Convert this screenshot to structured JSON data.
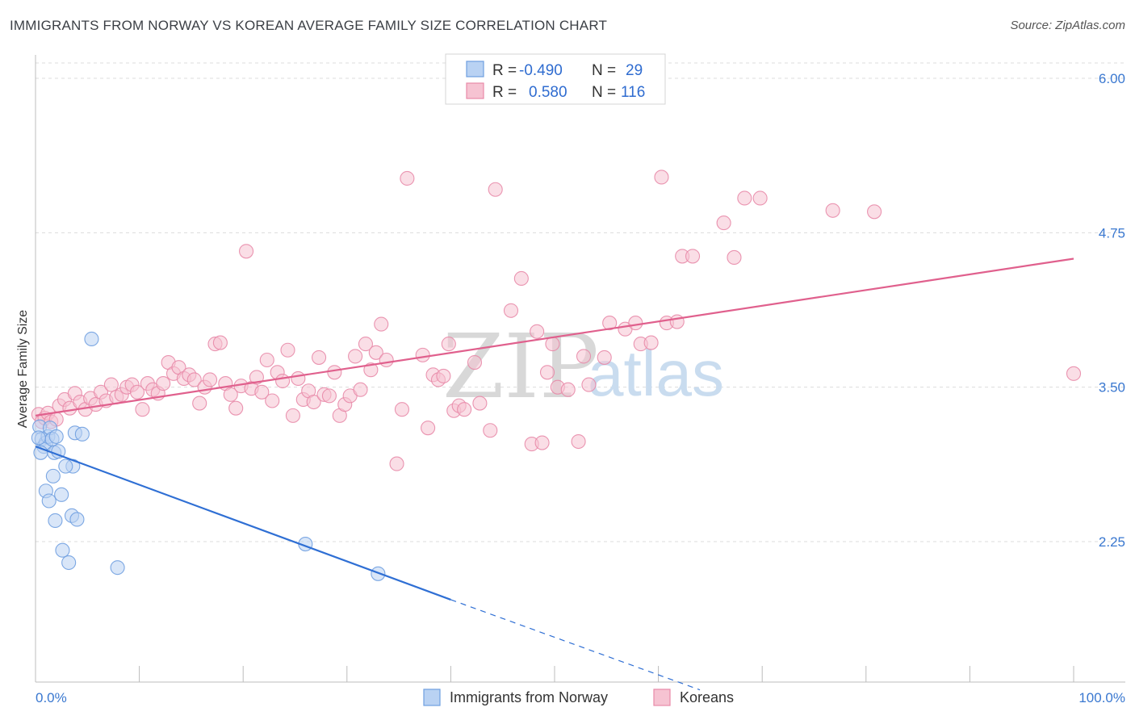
{
  "title": "IMMIGRANTS FROM NORWAY VS KOREAN AVERAGE FAMILY SIZE CORRELATION CHART",
  "source": "Source: ZipAtlas.com",
  "watermark": {
    "zip": "ZIP",
    "atlas": "atlas"
  },
  "legend_top": {
    "rows": [
      {
        "r_label": "R =",
        "r_value": "-0.490",
        "n_label": "N =",
        "n_value": "29"
      },
      {
        "r_label": "R =",
        "r_value": "0.580",
        "n_label": "N =",
        "n_value": "116"
      }
    ]
  },
  "legend_bottom": [
    "Immigrants from Norway",
    "Koreans"
  ],
  "colors": {
    "blue_fill": "#b9d2f3",
    "blue_stroke": "#6f9fe0",
    "blue_line": "#2f6fd4",
    "pink_fill": "#f6c3d2",
    "pink_stroke": "#e88aa8",
    "pink_line": "#e0608d",
    "grid": "#dcdcdc",
    "tick_text": "#3a78d0"
  },
  "chart_data": {
    "type": "scatter",
    "title": "IMMIGRANTS FROM NORWAY VS KOREAN AVERAGE FAMILY SIZE CORRELATION CHART",
    "xlabel": "",
    "ylabel": "Average Family Size",
    "xlim": [
      0,
      100
    ],
    "ylim": [
      1.25,
      6.25
    ],
    "x_tick_labels": [
      "0.0%",
      "100.0%"
    ],
    "y_ticks": [
      2.25,
      3.5,
      4.75,
      6.0
    ],
    "y_tick_labels": [
      "2.25",
      "3.50",
      "4.75",
      "6.00"
    ],
    "grid": true,
    "series": [
      {
        "name": "Immigrants from Norway",
        "color": "#6f9fe0",
        "r": -0.49,
        "n": 29,
        "trend": {
          "x": [
            0,
            40
          ],
          "y": [
            3.02,
            1.78
          ],
          "dashed_to": [
            64,
            1.05
          ]
        },
        "points": [
          [
            0.4,
            3.18
          ],
          [
            0.6,
            3.08
          ],
          [
            0.8,
            3.02
          ],
          [
            1.0,
            3.05
          ],
          [
            1.2,
            3.1
          ],
          [
            1.4,
            3.17
          ],
          [
            1.6,
            3.08
          ],
          [
            1.8,
            2.97
          ],
          [
            2.0,
            3.1
          ],
          [
            0.5,
            2.97
          ],
          [
            0.3,
            3.09
          ],
          [
            1.0,
            2.66
          ],
          [
            1.3,
            2.58
          ],
          [
            1.7,
            2.78
          ],
          [
            2.2,
            2.98
          ],
          [
            2.5,
            2.63
          ],
          [
            1.9,
            2.42
          ],
          [
            2.6,
            2.18
          ],
          [
            3.2,
            2.08
          ],
          [
            3.5,
            2.46
          ],
          [
            4.0,
            2.43
          ],
          [
            3.6,
            2.86
          ],
          [
            2.9,
            2.86
          ],
          [
            3.8,
            3.13
          ],
          [
            4.5,
            3.12
          ],
          [
            5.4,
            3.89
          ],
          [
            7.9,
            2.04
          ],
          [
            26.0,
            2.23
          ],
          [
            33.0,
            1.99
          ]
        ]
      },
      {
        "name": "Koreans",
        "color": "#e88aa8",
        "r": 0.58,
        "n": 116,
        "trend": {
          "x": [
            0,
            100
          ],
          "y": [
            3.27,
            4.54
          ]
        },
        "points": [
          [
            0.3,
            3.28
          ],
          [
            0.6,
            3.22
          ],
          [
            0.9,
            3.25
          ],
          [
            1.2,
            3.29
          ],
          [
            1.5,
            3.22
          ],
          [
            2.0,
            3.24
          ],
          [
            2.3,
            3.35
          ],
          [
            2.8,
            3.4
          ],
          [
            3.3,
            3.33
          ],
          [
            3.8,
            3.45
          ],
          [
            4.3,
            3.38
          ],
          [
            4.8,
            3.32
          ],
          [
            5.3,
            3.41
          ],
          [
            5.8,
            3.36
          ],
          [
            6.3,
            3.46
          ],
          [
            6.8,
            3.39
          ],
          [
            7.3,
            3.52
          ],
          [
            7.8,
            3.42
          ],
          [
            8.3,
            3.44
          ],
          [
            8.8,
            3.5
          ],
          [
            9.3,
            3.52
          ],
          [
            9.8,
            3.46
          ],
          [
            10.3,
            3.32
          ],
          [
            10.8,
            3.53
          ],
          [
            11.3,
            3.48
          ],
          [
            11.8,
            3.45
          ],
          [
            12.3,
            3.53
          ],
          [
            12.8,
            3.7
          ],
          [
            13.3,
            3.61
          ],
          [
            13.8,
            3.66
          ],
          [
            14.3,
            3.57
          ],
          [
            14.8,
            3.6
          ],
          [
            15.3,
            3.56
          ],
          [
            15.8,
            3.37
          ],
          [
            16.3,
            3.5
          ],
          [
            16.8,
            3.56
          ],
          [
            17.3,
            3.85
          ],
          [
            17.8,
            3.86
          ],
          [
            18.3,
            3.53
          ],
          [
            18.8,
            3.44
          ],
          [
            19.3,
            3.33
          ],
          [
            19.8,
            3.51
          ],
          [
            20.3,
            4.6
          ],
          [
            20.8,
            3.49
          ],
          [
            21.3,
            3.58
          ],
          [
            21.8,
            3.46
          ],
          [
            22.3,
            3.72
          ],
          [
            22.8,
            3.39
          ],
          [
            23.3,
            3.62
          ],
          [
            23.8,
            3.55
          ],
          [
            24.3,
            3.8
          ],
          [
            24.8,
            3.27
          ],
          [
            25.3,
            3.57
          ],
          [
            25.8,
            3.4
          ],
          [
            26.3,
            3.47
          ],
          [
            26.8,
            3.38
          ],
          [
            27.3,
            3.74
          ],
          [
            27.8,
            3.44
          ],
          [
            28.3,
            3.43
          ],
          [
            28.8,
            3.62
          ],
          [
            29.3,
            3.27
          ],
          [
            29.8,
            3.36
          ],
          [
            30.3,
            3.43
          ],
          [
            30.8,
            3.75
          ],
          [
            31.3,
            3.48
          ],
          [
            31.8,
            3.85
          ],
          [
            32.3,
            3.64
          ],
          [
            32.8,
            3.78
          ],
          [
            33.3,
            4.01
          ],
          [
            33.8,
            3.72
          ],
          [
            34.8,
            2.88
          ],
          [
            35.3,
            3.32
          ],
          [
            35.8,
            5.19
          ],
          [
            37.3,
            3.76
          ],
          [
            37.8,
            3.17
          ],
          [
            38.3,
            3.6
          ],
          [
            38.8,
            3.56
          ],
          [
            39.3,
            3.59
          ],
          [
            39.8,
            3.85
          ],
          [
            40.3,
            3.31
          ],
          [
            40.8,
            3.35
          ],
          [
            41.3,
            3.32
          ],
          [
            42.3,
            3.7
          ],
          [
            42.8,
            3.37
          ],
          [
            43.8,
            3.15
          ],
          [
            44.3,
            5.1
          ],
          [
            45.8,
            4.12
          ],
          [
            46.8,
            4.38
          ],
          [
            47.8,
            3.04
          ],
          [
            48.3,
            3.95
          ],
          [
            48.8,
            3.05
          ],
          [
            49.3,
            3.62
          ],
          [
            49.8,
            3.85
          ],
          [
            50.3,
            3.5
          ],
          [
            51.3,
            3.48
          ],
          [
            52.3,
            3.06
          ],
          [
            53.3,
            3.52
          ],
          [
            54.8,
            3.74
          ],
          [
            55.3,
            4.02
          ],
          [
            56.8,
            3.97
          ],
          [
            57.8,
            4.02
          ],
          [
            58.3,
            3.85
          ],
          [
            59.3,
            3.86
          ],
          [
            60.3,
            5.2
          ],
          [
            60.8,
            4.02
          ],
          [
            61.8,
            4.03
          ],
          [
            62.3,
            4.56
          ],
          [
            63.3,
            4.56
          ],
          [
            66.3,
            4.83
          ],
          [
            67.3,
            4.55
          ],
          [
            68.3,
            5.03
          ],
          [
            69.8,
            5.03
          ],
          [
            76.8,
            4.93
          ],
          [
            80.8,
            4.92
          ],
          [
            100.0,
            3.61
          ],
          [
            52.8,
            3.75
          ]
        ]
      }
    ]
  }
}
